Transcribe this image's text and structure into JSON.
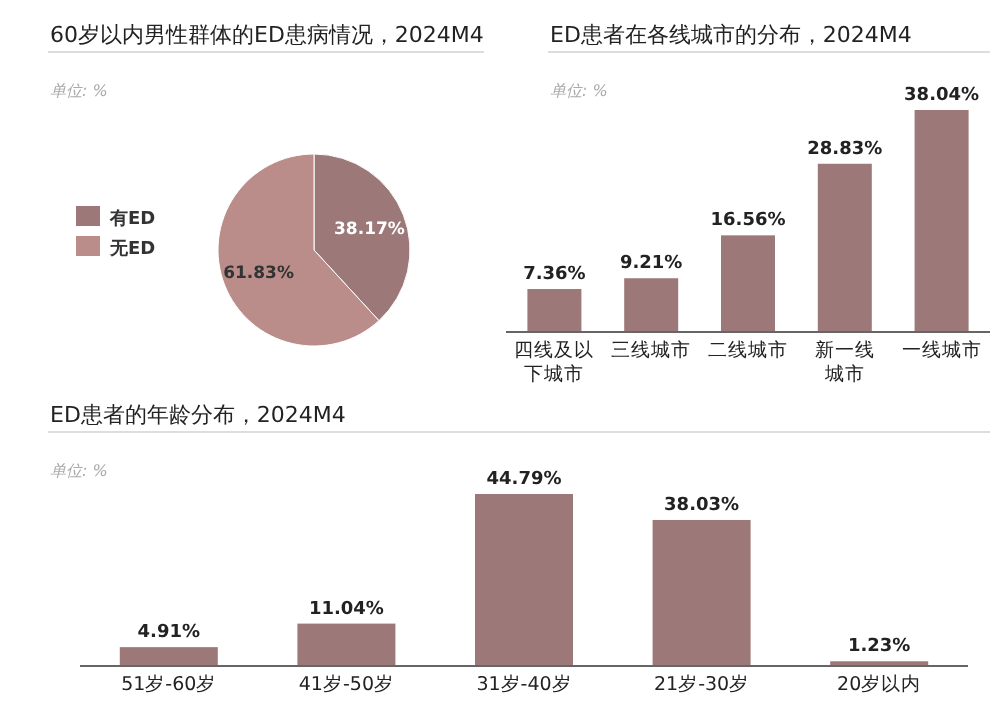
{
  "chart_data": [
    {
      "type": "pie",
      "title": "60岁以内男性群体的ED患病情况，2024M4",
      "annotations": [
        "单位: %"
      ],
      "categories": [
        "有ED",
        "无ED"
      ],
      "values": [
        38.17,
        61.83
      ],
      "colors": [
        "#9c7878",
        "#ba8d8b"
      ],
      "value_labels": [
        "38.17%",
        "61.83%"
      ],
      "legend": "left"
    },
    {
      "type": "bar",
      "title": "ED患者在各线城市的分布，2024M4",
      "annotations": [
        "单位: %"
      ],
      "categories": [
        "四线及以下城市",
        "三线城市",
        "二线城市",
        "新一线城市",
        "一线城市"
      ],
      "values": [
        7.36,
        9.21,
        16.56,
        28.83,
        38.04
      ],
      "color": "#9c7878",
      "value_labels": [
        "7.36%",
        "9.21%",
        "16.56%",
        "28.83%",
        "38.04%"
      ]
    },
    {
      "type": "bar",
      "title": "ED患者的年龄分布，2024M4",
      "annotations": [
        "单位: %"
      ],
      "categories": [
        "51岁-60岁",
        "41岁-50岁",
        "31岁-40岁",
        "21岁-30岁",
        "20岁以内"
      ],
      "values": [
        4.91,
        11.04,
        44.79,
        38.03,
        1.23
      ],
      "color": "#9c7878",
      "value_labels": [
        "4.91%",
        "11.04%",
        "44.79%",
        "38.03%",
        "1.23%"
      ]
    }
  ]
}
